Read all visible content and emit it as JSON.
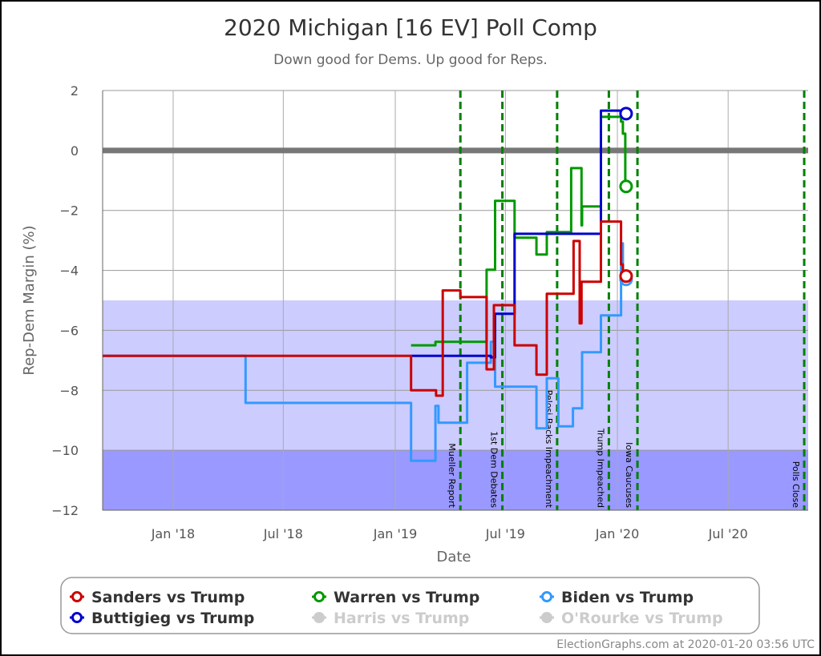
{
  "chart_data": {
    "type": "line",
    "title": "2020 Michigan [16 EV] Poll Comp",
    "subtitle": "Down good for Dems. Up good for Reps.",
    "xlabel": "Date",
    "ylabel": "Rep-Dem Margin (%)",
    "xlim": [
      "2017-09-07",
      "2020-11-10"
    ],
    "ylim": [
      -12,
      2
    ],
    "yticks": [
      2,
      0,
      -2,
      -4,
      -6,
      -8,
      -10,
      -12
    ],
    "ytick_labels": [
      "2",
      "0",
      "−2",
      "−4",
      "−6",
      "−8",
      "−10",
      "−12"
    ],
    "xticks": [
      {
        "date": "2018-01-01",
        "label": "Jan '18"
      },
      {
        "date": "2018-07-01",
        "label": "Jul '18"
      },
      {
        "date": "2019-01-01",
        "label": "Jan '19"
      },
      {
        "date": "2019-07-01",
        "label": "Jul '19"
      },
      {
        "date": "2020-01-01",
        "label": "Jan '20"
      },
      {
        "date": "2020-07-01",
        "label": "Jul '20"
      }
    ],
    "grid": true,
    "bands": [
      {
        "from": -5,
        "to": -10,
        "color": "#ccccff"
      },
      {
        "from": -10,
        "to": -12,
        "color": "#9999ff"
      }
    ],
    "zero_line_color": "#777777",
    "events": [
      {
        "date": "2019-04-18",
        "label": "Mueller Report"
      },
      {
        "date": "2019-06-26",
        "label": "1st Dem Debates"
      },
      {
        "date": "2019-09-24",
        "label": "Pelosi Backs Impeachment"
      },
      {
        "date": "2019-12-18",
        "label": "Trump Impeached"
      },
      {
        "date": "2020-02-03",
        "label": "Iowa Caucuses"
      },
      {
        "date": "2020-11-03",
        "label": "Polls Close"
      }
    ],
    "event_color": "#008000",
    "legend_position": "bottom",
    "series": [
      {
        "name": "Biden vs Trump",
        "color": "#3399ff",
        "active": true,
        "points": [
          [
            "2017-09-07",
            -6.85
          ],
          [
            "2018-04-30",
            -8.42
          ],
          [
            "2019-01-27",
            -10.35
          ],
          [
            "2019-03-08",
            -8.52
          ],
          [
            "2019-03-13",
            -9.08
          ],
          [
            "2019-04-29",
            -7.08
          ],
          [
            "2019-06-07",
            -6.38
          ],
          [
            "2019-06-14",
            -7.88
          ],
          [
            "2019-08-21",
            -9.27
          ],
          [
            "2019-09-07",
            -7.6
          ],
          [
            "2019-09-26",
            -9.2
          ],
          [
            "2019-10-20",
            -8.6
          ],
          [
            "2019-11-04",
            -6.73
          ],
          [
            "2019-12-05",
            -5.5
          ],
          [
            "2020-01-07",
            -3.1
          ],
          [
            "2020-01-10",
            -4.3
          ],
          [
            "2020-01-14",
            -4.3
          ]
        ]
      },
      {
        "name": "Warren vs Trump",
        "color": "#009900",
        "active": true,
        "points": [
          [
            "2019-01-27",
            -6.5
          ],
          [
            "2019-03-08",
            -6.38
          ],
          [
            "2019-05-31",
            -3.98
          ],
          [
            "2019-06-14",
            -1.68
          ],
          [
            "2019-07-16",
            -2.91
          ],
          [
            "2019-08-21",
            -3.47
          ],
          [
            "2019-09-07",
            -2.72
          ],
          [
            "2019-10-17",
            -0.59
          ],
          [
            "2019-11-03",
            -2.5
          ],
          [
            "2019-11-04",
            -1.87
          ],
          [
            "2019-12-05",
            1.12
          ],
          [
            "2020-01-07",
            0.96
          ],
          [
            "2020-01-10",
            0.56
          ],
          [
            "2020-01-14",
            -1.2
          ]
        ]
      },
      {
        "name": "Buttigieg vs Trump",
        "color": "#0000cc",
        "active": true,
        "points": [
          [
            "2019-01-27",
            -6.85
          ],
          [
            "2019-06-07",
            -6.9
          ],
          [
            "2019-06-14",
            -5.45
          ],
          [
            "2019-07-16",
            -2.78
          ],
          [
            "2019-12-05",
            1.33
          ],
          [
            "2020-01-07",
            1.25
          ],
          [
            "2020-01-14",
            1.23
          ]
        ]
      },
      {
        "name": "Sanders vs Trump",
        "color": "#cc0000",
        "active": true,
        "points": [
          [
            "2017-09-07",
            -6.85
          ],
          [
            "2019-01-27",
            -8.0
          ],
          [
            "2019-03-09",
            -8.18
          ],
          [
            "2019-03-20",
            -4.67
          ],
          [
            "2019-04-18",
            -4.89
          ],
          [
            "2019-05-31",
            -7.3
          ],
          [
            "2019-06-12",
            -5.16
          ],
          [
            "2019-07-16",
            -6.5
          ],
          [
            "2019-08-21",
            -7.48
          ],
          [
            "2019-09-07",
            -4.78
          ],
          [
            "2019-10-21",
            -3.02
          ],
          [
            "2019-10-31",
            -5.77
          ],
          [
            "2019-11-03",
            -4.38
          ],
          [
            "2019-12-05",
            -2.37
          ],
          [
            "2020-01-07",
            -3.8
          ],
          [
            "2020-01-10",
            -4.19
          ],
          [
            "2020-01-14",
            -4.19
          ]
        ]
      },
      {
        "name": "Harris vs Trump",
        "color": "#cccccc",
        "active": false,
        "points": []
      },
      {
        "name": "O'Rourke vs Trump",
        "color": "#cccccc",
        "active": false,
        "points": []
      }
    ],
    "legend_order": [
      "Sanders vs Trump",
      "Warren vs Trump",
      "Biden vs Trump",
      "Buttigieg vs Trump",
      "Harris vs Trump",
      "O'Rourke vs Trump"
    ]
  },
  "credit": "ElectionGraphs.com at 2020-01-20 03:56 UTC"
}
